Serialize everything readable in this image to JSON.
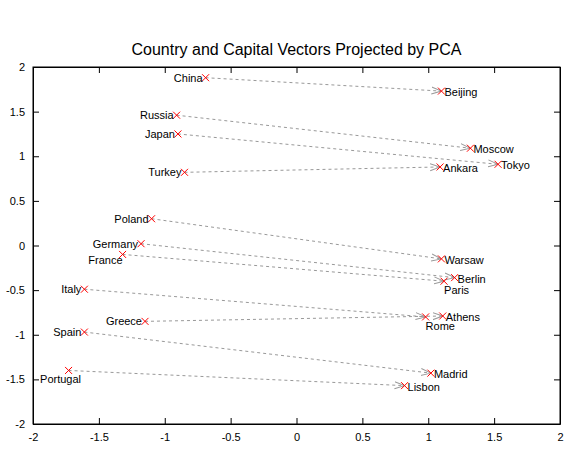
{
  "chart_data": {
    "type": "scatter",
    "title": "Country and Capital Vectors Projected by PCA",
    "xlim": [
      -2,
      2
    ],
    "ylim": [
      -2,
      2
    ],
    "xticks": [
      -2,
      -1.5,
      -1,
      -0.5,
      0,
      0.5,
      1,
      1.5,
      2
    ],
    "yticks": [
      -2,
      -1.5,
      -1,
      -0.5,
      0,
      0.5,
      1,
      1.5,
      2
    ],
    "color": "#ff0000",
    "marker": "x",
    "line_style": "dashed",
    "grid": false,
    "pairs": [
      {
        "country": {
          "label": "China",
          "x": -0.69,
          "y": 1.88
        },
        "capital": {
          "label": "Beijing",
          "x": 1.1,
          "y": 1.73
        }
      },
      {
        "country": {
          "label": "Russia",
          "x": -0.91,
          "y": 1.46
        },
        "capital": {
          "label": "Moscow",
          "x": 1.32,
          "y": 1.09
        }
      },
      {
        "country": {
          "label": "Japan",
          "x": -0.9,
          "y": 1.25
        },
        "capital": {
          "label": "Tokyo",
          "x": 1.53,
          "y": 0.91
        }
      },
      {
        "country": {
          "label": "Turkey",
          "x": -0.85,
          "y": 0.82
        },
        "capital": {
          "label": "Ankara",
          "x": 1.09,
          "y": 0.88
        }
      },
      {
        "country": {
          "label": "Poland",
          "x": -1.1,
          "y": 0.3
        },
        "capital": {
          "label": "Warsaw",
          "x": 1.1,
          "y": -0.15
        }
      },
      {
        "country": {
          "label": "Germany",
          "x": -1.18,
          "y": 0.02
        },
        "capital": {
          "label": "Berlin",
          "x": 1.2,
          "y": -0.36
        }
      },
      {
        "country": {
          "label": "France",
          "x": -1.32,
          "y": -0.1
        },
        "capital": {
          "label": "Paris",
          "x": 1.12,
          "y": -0.4
        }
      },
      {
        "country": {
          "label": "Italy",
          "x": -1.61,
          "y": -0.49
        },
        "capital": {
          "label": "Rome",
          "x": 0.98,
          "y": -0.8
        }
      },
      {
        "country": {
          "label": "Greece",
          "x": -1.15,
          "y": -0.85
        },
        "capital": {
          "label": "Athens",
          "x": 1.11,
          "y": -0.79
        }
      },
      {
        "country": {
          "label": "Spain",
          "x": -1.61,
          "y": -0.97
        },
        "capital": {
          "label": "Madrid",
          "x": 1.02,
          "y": -1.43
        }
      },
      {
        "country": {
          "label": "Portugal",
          "x": -1.73,
          "y": -1.4
        },
        "capital": {
          "label": "Lisbon",
          "x": 0.82,
          "y": -1.57
        }
      }
    ]
  }
}
